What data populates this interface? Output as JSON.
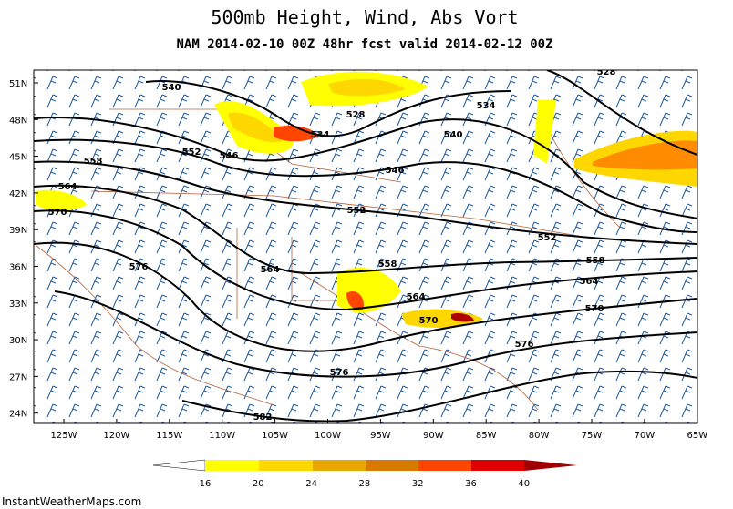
{
  "header": {
    "title": "500mb Height, Wind, Abs Vort",
    "subtitle": "NAM 2014-02-10 00Z 48hr fcst valid 2014-02-12 00Z"
  },
  "map": {
    "lat_labels": [
      "51N",
      "48N",
      "45N",
      "42N",
      "39N",
      "36N",
      "33N",
      "30N",
      "27N",
      "24N"
    ],
    "lon_labels": [
      "125W",
      "120W",
      "115W",
      "110W",
      "105W",
      "100W",
      "95W",
      "90W",
      "85W",
      "80W",
      "75W",
      "70W",
      "65W"
    ],
    "contour_labels": [
      528,
      540,
      528,
      534,
      534,
      540,
      552,
      546,
      558,
      546,
      564,
      552,
      570,
      552,
      576,
      564,
      558,
      558,
      564,
      564,
      570,
      570,
      576,
      576,
      582
    ]
  },
  "colorbar": {
    "labels": [
      16,
      20,
      24,
      28,
      32,
      36,
      40
    ]
  },
  "footer": {
    "text": "InstantWeatherMaps.com"
  }
}
